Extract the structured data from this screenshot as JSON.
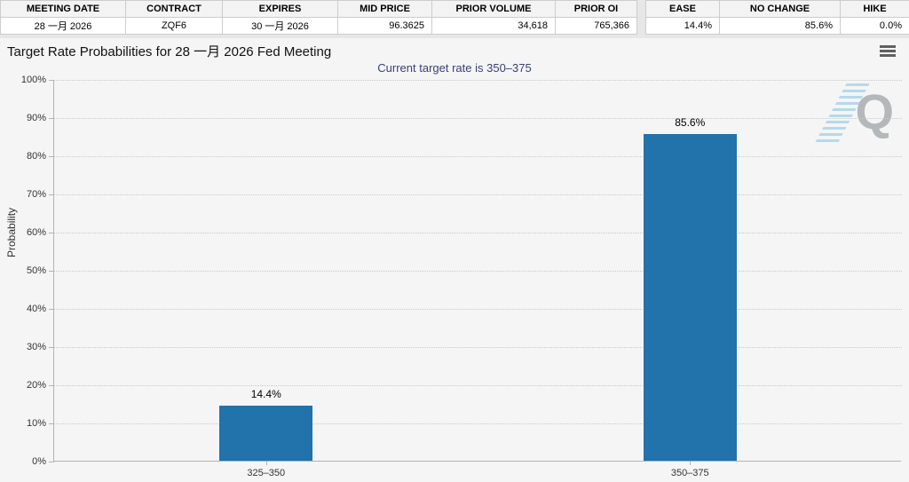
{
  "quote_board": {
    "contract_table": {
      "headers": [
        "MEETING DATE",
        "CONTRACT",
        "EXPIRES",
        "MID PRICE",
        "PRIOR VOLUME",
        "PRIOR OI"
      ],
      "row": [
        "28 一月 2026",
        "ZQF6",
        "30 一月 2026",
        "96.3625",
        "34,618",
        "765,366"
      ]
    },
    "action_table": {
      "headers": [
        "EASE",
        "NO CHANGE",
        "HIKE"
      ],
      "row": [
        "14.4%",
        "85.6%",
        "0.0%"
      ]
    }
  },
  "chart_data": {
    "type": "bar",
    "title": "Target Rate Probabilities for 28 一月 2026 Fed Meeting",
    "subtitle": "Current target rate is 350–375",
    "categories": [
      "325–350",
      "350–375"
    ],
    "values": [
      14.4,
      85.6
    ],
    "data_labels": [
      "14.4%",
      "85.6%"
    ],
    "xlabel": "",
    "ylabel": "Probability",
    "ylim": [
      0,
      100
    ],
    "yticks": [
      "0%",
      "10%",
      "20%",
      "30%",
      "40%",
      "50%",
      "60%",
      "70%",
      "80%",
      "90%",
      "100%"
    ],
    "grid": "horizontal-dotted",
    "legend": "none",
    "bar_color": "#2272ab",
    "watermark_letter": "Q"
  },
  "icons": {
    "menu": "hamburger-menu"
  },
  "colors": {
    "bar": "#2272ab",
    "subtitle_text": "#3a4077",
    "grid": "#c9c9c9",
    "axis": "#b3b3b3",
    "table_header_bg": "#f3f3f3",
    "strip_bg": "#e7e7e7",
    "page_bg": "#f5f5f5",
    "watermark_gray": "#b5b8ba",
    "watermark_blue": "#aed6eb"
  }
}
